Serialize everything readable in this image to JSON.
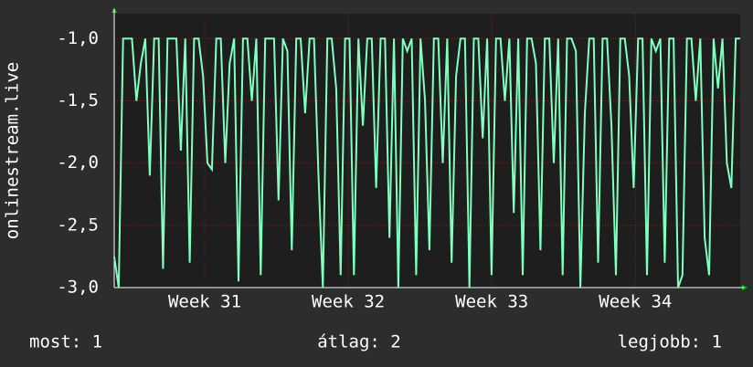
{
  "chart_data": {
    "type": "line",
    "y_label": "onlinestream.live",
    "xlim": [
      30.37,
      34.73
    ],
    "xticks": [
      {
        "value": 31,
        "label": "Week 31"
      },
      {
        "value": 32,
        "label": "Week 32"
      },
      {
        "value": 33,
        "label": "Week 33"
      },
      {
        "value": 34,
        "label": "Week 34"
      }
    ],
    "ylim": [
      -3,
      -0.8
    ],
    "yticks": [
      {
        "value": -3,
        "label": "-3,0"
      },
      {
        "value": -2.5,
        "label": "-2,5"
      },
      {
        "value": -2,
        "label": "-2,0"
      },
      {
        "value": -1.5,
        "label": "-1,5"
      },
      {
        "value": -1,
        "label": "-1,0"
      }
    ],
    "grid": true,
    "series": [
      {
        "name": "onlinestream.live",
        "color": "#80ffbf",
        "values": [
          -2.75,
          -3,
          -1,
          -1,
          -1,
          -1.5,
          -1.2,
          -1,
          -2.1,
          -1,
          -1,
          -2.85,
          -1,
          -1,
          -1,
          -1.9,
          -1,
          -2.8,
          -1,
          -1,
          -1.3,
          -2,
          -2.05,
          -1,
          -1,
          -2,
          -1.2,
          -1,
          -2.95,
          -1,
          -1,
          -1.5,
          -1,
          -2.9,
          -1,
          -1,
          -1,
          -2.3,
          -1,
          -1.1,
          -2.7,
          -1,
          -1,
          -1.6,
          -1,
          -1,
          -2.1,
          -3,
          -1,
          -1,
          -1.4,
          -2.9,
          -1,
          -1,
          -2.9,
          -1,
          -1.7,
          -1,
          -1,
          -2.2,
          -1,
          -1,
          -2.6,
          -1,
          -3,
          -1,
          -1.1,
          -1,
          -2.9,
          -1,
          -1.5,
          -2.7,
          -1,
          -1,
          -2,
          -1,
          -2.8,
          -1.3,
          -1,
          -1,
          -3,
          -1,
          -1,
          -1.8,
          -1,
          -2.9,
          -1,
          -1,
          -1.5,
          -1,
          -2.4,
          -1,
          -2.9,
          -1,
          -1,
          -1.2,
          -2.7,
          -1,
          -1,
          -2,
          -1,
          -2.9,
          -1,
          -1,
          -1.1,
          -3,
          -1.6,
          -1,
          -1,
          -2.8,
          -1,
          -1,
          -1.7,
          -2.9,
          -1,
          -1,
          -1.3,
          -2.2,
          -1,
          -1,
          -2.9,
          -1,
          -1.1,
          -1,
          -2.8,
          -1,
          -1,
          -3,
          -2.9,
          -1,
          -1,
          -1.5,
          -1,
          -2.6,
          -2.9,
          -1,
          -1.4,
          -1,
          -2,
          -2.2,
          -1,
          -1
        ]
      }
    ],
    "legend": {
      "current": "most: 1",
      "average": "átlag: 2",
      "best": "legjobb: 1"
    }
  }
}
